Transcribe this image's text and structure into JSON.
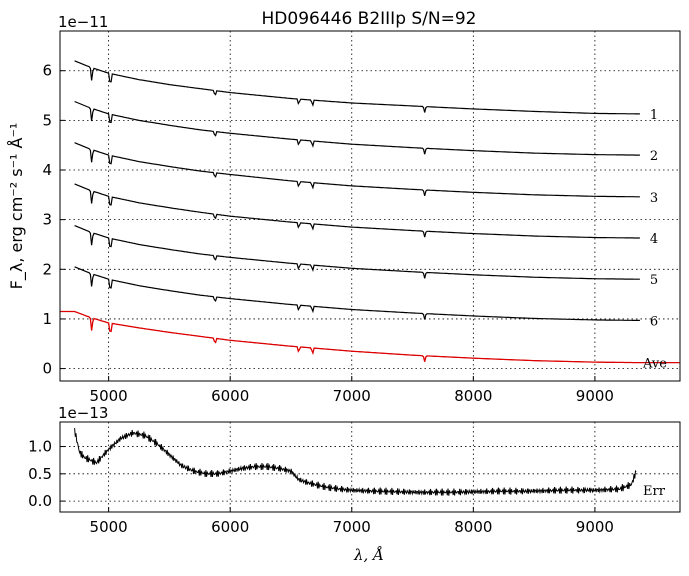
{
  "chart_data": [
    {
      "type": "line",
      "title": "HD096446  B2IIIp  S/N=92",
      "xlabel": "λ, Å",
      "ylabel": "F_λ, erg cm⁻² s⁻¹ Å⁻¹",
      "offset_text": "1e−11",
      "xlim": [
        4600,
        9700
      ],
      "ylim": [
        -0.25,
        6.8
      ],
      "xticks": [
        5000,
        6000,
        7000,
        8000,
        9000
      ],
      "yticks": [
        0,
        1,
        2,
        3,
        4,
        5,
        6
      ],
      "grid": true,
      "x": [
        4720,
        4850,
        5000,
        5250,
        5500,
        5750,
        6000,
        6500,
        7000,
        7500,
        8000,
        8500,
        9000,
        9370
      ],
      "series": [
        {
          "name": "1",
          "color": "#000000",
          "values": [
            6.2,
            6.07,
            5.95,
            5.82,
            5.72,
            5.64,
            5.56,
            5.44,
            5.35,
            5.29,
            5.23,
            5.18,
            5.14,
            5.13
          ]
        },
        {
          "name": "2",
          "color": "#000000",
          "values": [
            5.38,
            5.25,
            5.13,
            5.0,
            4.9,
            4.81,
            4.74,
            4.62,
            4.52,
            4.45,
            4.39,
            4.34,
            4.31,
            4.3
          ]
        },
        {
          "name": "3",
          "color": "#000000",
          "values": [
            4.55,
            4.42,
            4.3,
            4.17,
            4.07,
            3.98,
            3.91,
            3.78,
            3.68,
            3.61,
            3.55,
            3.5,
            3.47,
            3.46
          ]
        },
        {
          "name": "4",
          "color": "#000000",
          "values": [
            3.72,
            3.59,
            3.47,
            3.34,
            3.24,
            3.15,
            3.07,
            2.95,
            2.85,
            2.78,
            2.72,
            2.67,
            2.64,
            2.63
          ]
        },
        {
          "name": "5",
          "color": "#000000",
          "values": [
            2.88,
            2.75,
            2.63,
            2.5,
            2.4,
            2.31,
            2.24,
            2.12,
            2.02,
            1.95,
            1.89,
            1.84,
            1.81,
            1.8
          ]
        },
        {
          "name": "6",
          "color": "#000000",
          "values": [
            2.05,
            1.92,
            1.8,
            1.67,
            1.57,
            1.48,
            1.41,
            1.29,
            1.19,
            1.12,
            1.06,
            1.01,
            0.98,
            0.97
          ]
        },
        {
          "name": "Ave",
          "color": "#dd0000",
          "values": [
            1.15,
            1.03,
            0.92,
            0.82,
            0.73,
            0.65,
            0.57,
            0.45,
            0.35,
            0.27,
            0.21,
            0.16,
            0.13,
            0.12
          ]
        }
      ],
      "absorption_lines": [
        4861,
        5015,
        5876,
        6563,
        6678,
        7600
      ],
      "series_labels": [
        "1",
        "2",
        "3",
        "4",
        "5",
        "6",
        "Ave"
      ]
    },
    {
      "type": "line",
      "xlabel": "λ, Å",
      "offset_text": "1e−13",
      "xlim": [
        4600,
        9700
      ],
      "ylim": [
        -0.2,
        1.45
      ],
      "xticks": [
        5000,
        6000,
        7000,
        8000,
        9000
      ],
      "yticks": [
        "0.0",
        "0.5",
        "1.0"
      ],
      "ytick_values": [
        0.0,
        0.5,
        1.0
      ],
      "grid": true,
      "series": [
        {
          "name": "Err",
          "color": "#000000",
          "x": [
            4720,
            4760,
            4800,
            4850,
            4900,
            5000,
            5100,
            5200,
            5300,
            5400,
            5500,
            5600,
            5700,
            5800,
            5900,
            6000,
            6100,
            6200,
            6300,
            6400,
            6500,
            6560,
            6620,
            6700,
            6800,
            6900,
            7000,
            7200,
            7400,
            7600,
            7800,
            8000,
            8200,
            8400,
            8600,
            8800,
            9000,
            9200,
            9300,
            9340
          ],
          "values": [
            1.3,
            0.9,
            0.8,
            0.75,
            0.7,
            0.95,
            1.15,
            1.25,
            1.2,
            1.05,
            0.85,
            0.65,
            0.55,
            0.5,
            0.5,
            0.55,
            0.6,
            0.63,
            0.63,
            0.6,
            0.55,
            0.4,
            0.35,
            0.3,
            0.25,
            0.22,
            0.2,
            0.18,
            0.17,
            0.16,
            0.16,
            0.17,
            0.18,
            0.18,
            0.19,
            0.2,
            0.2,
            0.22,
            0.3,
            0.55
          ]
        }
      ],
      "series_labels": [
        "Err"
      ]
    }
  ]
}
